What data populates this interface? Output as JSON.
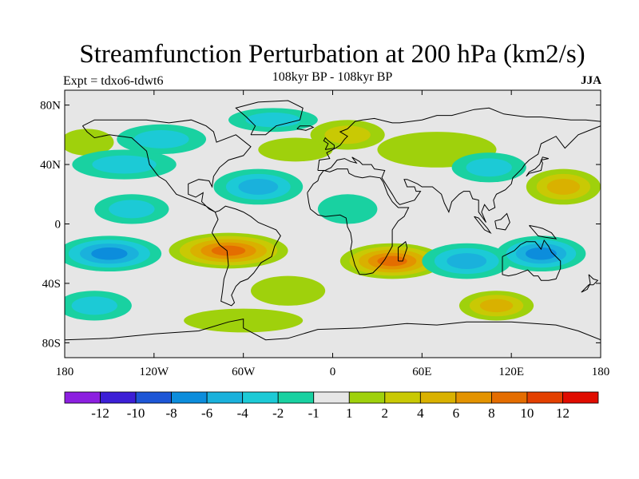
{
  "title": "Streamfunction Perturbation at 200 hPa (km2/s)",
  "subtitle": "108kyr BP - 108kyr BP",
  "experiment": "Expt = tdxo6-tdwt6",
  "season": "JJA",
  "map": {
    "projection": "cylindrical equidistant",
    "lon_range": [
      -180,
      180
    ],
    "lat_range": [
      -90,
      90
    ],
    "y_ticks": [
      {
        "lat": 80,
        "label": "80N"
      },
      {
        "lat": 40,
        "label": "40N"
      },
      {
        "lat": 0,
        "label": "0"
      },
      {
        "lat": -40,
        "label": "40S"
      },
      {
        "lat": -80,
        "label": "80S"
      }
    ],
    "x_ticks": [
      {
        "lon": -180,
        "label": "180"
      },
      {
        "lon": -120,
        "label": "120W"
      },
      {
        "lon": -60,
        "label": "60W"
      },
      {
        "lon": 0,
        "label": "0"
      },
      {
        "lon": 60,
        "label": "60E"
      },
      {
        "lon": 120,
        "label": "120E"
      },
      {
        "lon": 180,
        "label": "180"
      }
    ],
    "background_color": "#e6e6e6",
    "coast_color": "#000000"
  },
  "colorbar": {
    "colors": [
      "#8c1fe0",
      "#3c1fd6",
      "#1d56d6",
      "#0c8ddc",
      "#1ab1dc",
      "#1ccad6",
      "#19d1a1",
      "#e6e6e6",
      "#9fd10c",
      "#c9c904",
      "#d9b100",
      "#e39300",
      "#e46d00",
      "#e34000",
      "#e00c00"
    ],
    "labels": [
      "-12",
      "-10",
      "-8",
      "-6",
      "-4",
      "-2",
      "-1",
      "1",
      "2",
      "4",
      "6",
      "8",
      "10",
      "12"
    ]
  },
  "features": [
    {
      "name": "north-pacific-positive",
      "lon": -165,
      "lat": 55,
      "rx": 18,
      "ry": 9,
      "level": 2
    },
    {
      "name": "north-pacific-negative-band",
      "lon": -140,
      "lat": 40,
      "rx": 35,
      "ry": 10,
      "level": -2
    },
    {
      "name": "east-pacific-negative",
      "lon": -135,
      "lat": 10,
      "rx": 25,
      "ry": 10,
      "level": -2
    },
    {
      "name": "north-america-negative",
      "lon": -115,
      "lat": 57,
      "rx": 30,
      "ry": 10,
      "level": -2
    },
    {
      "name": "north-atlantic-negative",
      "lon": -50,
      "lat": 25,
      "rx": 30,
      "ry": 12,
      "level": -4
    },
    {
      "name": "north-atlantic-positive",
      "lon": -25,
      "lat": 50,
      "rx": 25,
      "ry": 8,
      "level": 2
    },
    {
      "name": "arctic-negative",
      "lon": -40,
      "lat": 70,
      "rx": 30,
      "ry": 8,
      "level": -2
    },
    {
      "name": "scandinavia-positive",
      "lon": 10,
      "lat": 60,
      "rx": 25,
      "ry": 10,
      "level": 4
    },
    {
      "name": "asia-positive",
      "lon": 70,
      "lat": 50,
      "rx": 40,
      "ry": 12,
      "level": 2
    },
    {
      "name": "east-asia-negative",
      "lon": 105,
      "lat": 38,
      "rx": 25,
      "ry": 10,
      "level": -2
    },
    {
      "name": "west-pacific-positive",
      "lon": 155,
      "lat": 25,
      "rx": 25,
      "ry": 12,
      "level": 6
    },
    {
      "name": "africa-negative",
      "lon": 10,
      "lat": 10,
      "rx": 20,
      "ry": 10,
      "level": -1
    },
    {
      "name": "tropical-pacific-south-negative",
      "lon": -150,
      "lat": -20,
      "rx": 35,
      "ry": 12,
      "level": -6
    },
    {
      "name": "south-america-positive",
      "lon": -70,
      "lat": -18,
      "rx": 40,
      "ry": 12,
      "level": 10
    },
    {
      "name": "south-atlantic-positive",
      "lon": -30,
      "lat": -45,
      "rx": 25,
      "ry": 10,
      "level": 2
    },
    {
      "name": "south-indian-positive",
      "lon": 40,
      "lat": -25,
      "rx": 35,
      "ry": 12,
      "level": 10
    },
    {
      "name": "indian-ocean-negative",
      "lon": 90,
      "lat": -25,
      "rx": 30,
      "ry": 12,
      "level": -4
    },
    {
      "name": "australia-negative",
      "lon": 140,
      "lat": -20,
      "rx": 30,
      "ry": 12,
      "level": -6
    },
    {
      "name": "south-pacific-positive",
      "lon": 110,
      "lat": -55,
      "rx": 25,
      "ry": 10,
      "level": 6
    },
    {
      "name": "southern-ocean-negative",
      "lon": -160,
      "lat": -55,
      "rx": 25,
      "ry": 10,
      "level": -2
    },
    {
      "name": "antarctic-positive",
      "lon": -60,
      "lat": -65,
      "rx": 40,
      "ry": 8,
      "level": 2
    }
  ]
}
